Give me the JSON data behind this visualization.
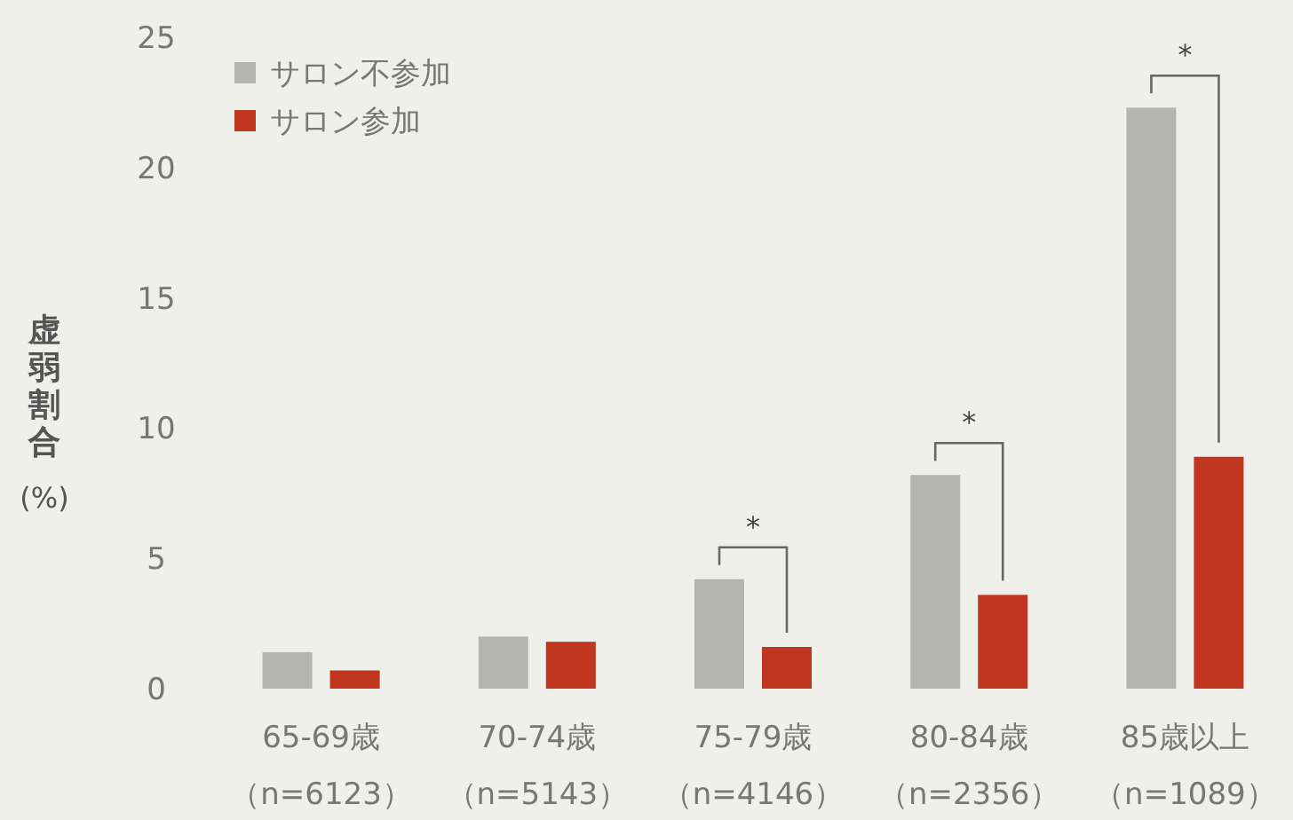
{
  "chart_data": {
    "type": "bar",
    "ylabel": "虚弱割合\n(%)",
    "categories": [
      "65-69歳（n=6123）",
      "70-74歳（n=5143）",
      "75-79歳（n=4146）",
      "80-84歳（n=2356）",
      "85歳以上（n=1089）"
    ],
    "series": [
      {
        "name": "サロン不参加",
        "color": "#b4b4b0",
        "values": [
          1.4,
          2.0,
          4.2,
          8.2,
          22.3
        ]
      },
      {
        "name": "サロン参加",
        "color": "#c0361e",
        "values": [
          0.7,
          1.8,
          1.6,
          3.6,
          8.9
        ]
      }
    ],
    "ylim": [
      0,
      25
    ],
    "yticks": [
      0,
      5,
      10,
      15,
      20,
      25
    ],
    "grid": false,
    "legend": "top left",
    "annotations": [
      "*",
      "*",
      "*"
    ]
  }
}
